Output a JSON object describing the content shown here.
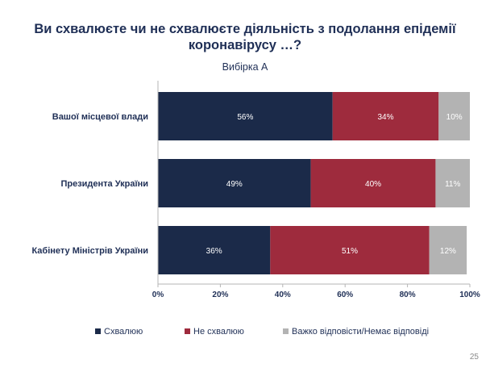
{
  "title_line1": "Ви схвалюєте чи не схвалюєте діяльність з подолання епідемії",
  "title_line2": "коронавірусу …?",
  "subtitle": "Вибірка А",
  "page_number": "25",
  "chart_data": {
    "type": "bar",
    "orientation": "horizontal",
    "stacked": true,
    "categories": [
      "Вашої місцевої влади",
      "Президента України",
      "Кабінету Міністрів України"
    ],
    "series": [
      {
        "name": "Схвалюю",
        "color": "#1b2a49",
        "values": [
          56,
          49,
          36
        ],
        "labels": [
          "56%",
          "49%",
          "36%"
        ]
      },
      {
        "name": "Не схвалюю",
        "color": "#9e2b3d",
        "values": [
          34,
          40,
          51
        ],
        "labels": [
          "34%",
          "40%",
          "51%"
        ]
      },
      {
        "name": "Важко відповісти/Немає відповіді",
        "color": "#b3b3b3",
        "values": [
          10,
          11,
          12
        ],
        "labels": [
          "10%",
          "11%",
          "12%"
        ]
      }
    ],
    "x_ticks": [
      "0%",
      "20%",
      "40%",
      "60%",
      "80%",
      "100%"
    ],
    "xlim": [
      0,
      100
    ],
    "legend_position": "bottom",
    "grid": false
  }
}
